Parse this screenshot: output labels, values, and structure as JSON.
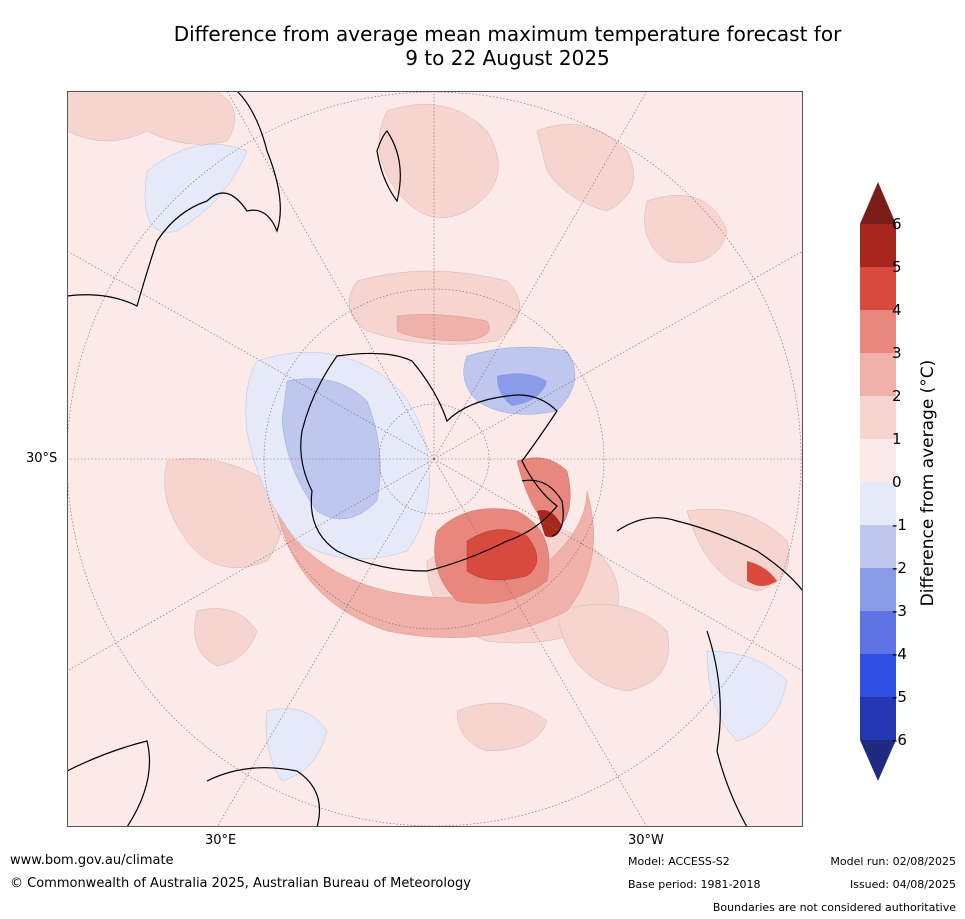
{
  "title_line1": "Difference from average mean maximum temperature forecast for",
  "title_line2": "9 to 22 August 2025",
  "map": {
    "projection": "south-polar stereographic",
    "lat_label": "30°S",
    "lon_labels": {
      "east": "30°E",
      "west": "30°W"
    },
    "background_anomaly_color": "#fbeae8"
  },
  "colorbar": {
    "label": "Difference from average (°C)",
    "ticks": [
      "6",
      "5",
      "4",
      "3",
      "2",
      "1",
      "0",
      "-1",
      "-2",
      "-3",
      "-4",
      "-5",
      "-6"
    ],
    "colors_top_to_bottom": [
      "#7a1d18",
      "#a7271f",
      "#d94a3e",
      "#e8877d",
      "#efb1aa",
      "#f6d5d1",
      "#fbeae8",
      "#e6eaf8",
      "#bfc7ef",
      "#8a9be8",
      "#5e73e4",
      "#2f4fe0",
      "#2538b3",
      "#1f2a80"
    ]
  },
  "footer": {
    "url": "www.bom.gov.au/climate",
    "copyright": "© Commonwealth of Australia 2025, Australian Bureau of Meteorology",
    "model": "Model: ACCESS-S2",
    "base_period": "Base period: 1981-2018",
    "model_run": "Model run: 02/08/2025",
    "issued": "Issued: 04/08/2025",
    "disclaimer": "Boundaries are not considered authoritative"
  }
}
